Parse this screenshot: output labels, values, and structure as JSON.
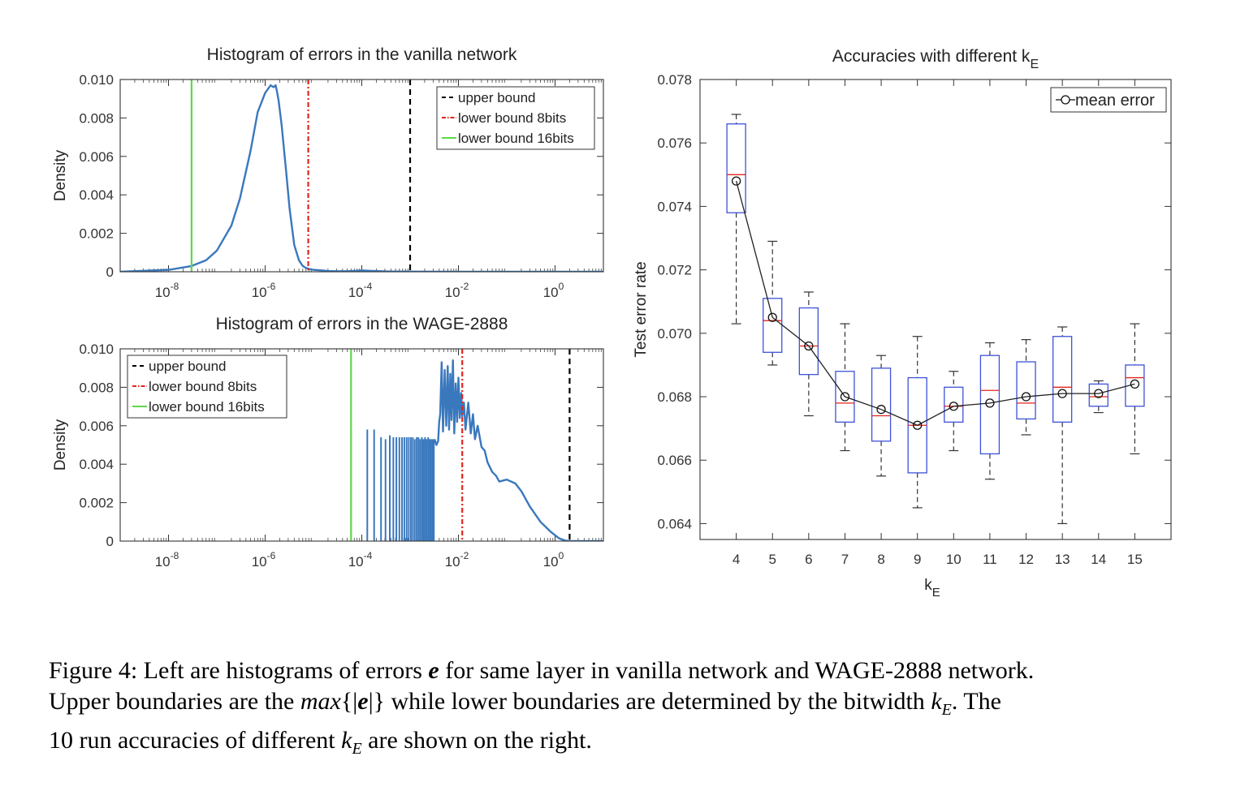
{
  "colors": {
    "histogram": "#3a78bd",
    "upper_bound": "#000000",
    "lower_bound_8bits": "#e0261c",
    "lower_bound_16bits": "#5fd84a",
    "box": "#3e52d8",
    "median": "#e0261c",
    "whisker": "#333333",
    "mean_line": "#222222"
  },
  "chart_data": [
    {
      "type": "line",
      "title": "Histogram of errors in the vanilla network",
      "xlabel": "",
      "ylabel": "Density",
      "x_scale": "log",
      "xlim": [
        1e-09,
        10.0
      ],
      "ylim": [
        0,
        0.01
      ],
      "x_ticks": [
        1e-08,
        1e-06,
        0.0001,
        0.01,
        1.0
      ],
      "x_tick_labels": [
        {
          "base": "10",
          "exp": "-8"
        },
        {
          "base": "10",
          "exp": "-6"
        },
        {
          "base": "10",
          "exp": "-4"
        },
        {
          "base": "10",
          "exp": "-2"
        },
        {
          "base": "10",
          "exp": "0"
        }
      ],
      "y_ticks": [
        0,
        0.002,
        0.004,
        0.006,
        0.008,
        0.01
      ],
      "y_tick_labels": [
        "0",
        "0.002",
        "0.004",
        "0.006",
        "0.008",
        "0.010"
      ],
      "legend": {
        "position": "top-right",
        "entries": [
          "upper bound",
          "lower bound 8bits",
          "lower bound 16bits"
        ]
      },
      "vlines": [
        {
          "name": "upper bound",
          "x": 0.001,
          "style": "dashed"
        },
        {
          "name": "lower bound 8bits",
          "x": 7.8e-06,
          "style": "dashdot"
        },
        {
          "name": "lower bound 16bits",
          "x": 3e-08,
          "style": "solid"
        }
      ],
      "series": [
        {
          "x": [
            1e-09,
            1e-08,
            3e-08,
            6e-08,
            1e-07,
            2e-07,
            3e-07,
            5e-07,
            7e-07,
            1e-06,
            1.3e-06,
            1.5e-06,
            1.65e-06,
            1.75e-06,
            1.9e-06,
            2.2e-06,
            2.7e-06,
            3.2e-06,
            4e-06,
            5e-06,
            6e-06,
            7e-06,
            8e-06,
            1e-05,
            1.5e-05,
            2e-05,
            3e-05,
            5e-05,
            8e-05,
            0.0001,
            0.00015,
            0.00025,
            0.0004,
            0.001,
            0.01,
            1,
            10
          ],
          "y": [
            0.0,
            0.0001,
            0.0003,
            0.0006,
            0.0011,
            0.0024,
            0.0038,
            0.0063,
            0.0083,
            0.0093,
            0.0097,
            0.0096,
            0.0097,
            0.0094,
            0.0089,
            0.0076,
            0.0053,
            0.0033,
            0.0014,
            0.0006,
            0.0003,
            0.0002,
            0.00015,
            0.0001,
            7e-05,
            4e-05,
            3e-05,
            3e-05,
            5e-05,
            7e-05,
            5e-05,
            3e-05,
            1e-05,
            1e-05,
            0.0,
            0.0,
            0.0
          ]
        }
      ]
    },
    {
      "type": "line",
      "title": "Histogram of errors in the WAGE-2888",
      "xlabel": "",
      "ylabel": "Density",
      "x_scale": "log",
      "xlim": [
        1e-09,
        10.0
      ],
      "ylim": [
        0,
        0.01
      ],
      "x_ticks": [
        1e-08,
        1e-06,
        0.0001,
        0.01,
        1.0
      ],
      "x_tick_labels": [
        {
          "base": "10",
          "exp": "-8"
        },
        {
          "base": "10",
          "exp": "-6"
        },
        {
          "base": "10",
          "exp": "-4"
        },
        {
          "base": "10",
          "exp": "-2"
        },
        {
          "base": "10",
          "exp": "0"
        }
      ],
      "y_ticks": [
        0,
        0.002,
        0.004,
        0.006,
        0.008,
        0.01
      ],
      "y_tick_labels": [
        "0",
        "0.002",
        "0.004",
        "0.006",
        "0.008",
        "0.010"
      ],
      "legend": {
        "position": "top-left",
        "entries": [
          "upper bound",
          "lower bound 8bits",
          "lower bound 16bits"
        ]
      },
      "vlines": [
        {
          "name": "upper bound",
          "x": 2,
          "style": "dashed"
        },
        {
          "name": "lower bound 8bits",
          "x": 0.012,
          "style": "dashdot"
        },
        {
          "name": "lower bound 16bits",
          "x": 6e-05,
          "style": "solid"
        }
      ],
      "spikes": {
        "x": [
          0.00013,
          0.00018,
          0.00025,
          0.00031,
          0.00038,
          0.00045,
          0.00052,
          0.0006,
          0.00068,
          0.00076,
          0.00085,
          0.00094,
          0.00104,
          0.00114,
          0.00125,
          0.00137,
          0.00149,
          0.00161,
          0.00175,
          0.00189,
          0.00204,
          0.0022,
          0.00237,
          0.00254,
          0.00272,
          0.00291,
          0.0031
        ],
        "y": [
          0.0058,
          0.0058,
          0.0054,
          0.0053,
          0.0055,
          0.0054,
          0.0054,
          0.0054,
          0.0054,
          0.0054,
          0.0054,
          0.0054,
          0.0054,
          0.0054,
          0.0053,
          0.0054,
          0.0054,
          0.0053,
          0.0054,
          0.0053,
          0.0054,
          0.0053,
          0.0054,
          0.0053,
          0.0053,
          0.0053,
          0.0053
        ]
      },
      "series": [
        {
          "x": [
            0.0032,
            0.0035,
            0.0038,
            0.004,
            0.0042,
            0.0045,
            0.0048,
            0.0052,
            0.0056,
            0.006,
            0.0064,
            0.0068,
            0.0072,
            0.0077,
            0.0082,
            0.0088,
            0.0094,
            0.01,
            0.0107,
            0.0114,
            0.012,
            0.013,
            0.014,
            0.016,
            0.018,
            0.02,
            0.022,
            0.025,
            0.03,
            0.035,
            0.04,
            0.05,
            0.06,
            0.07,
            0.1,
            0.15,
            0.2,
            0.3,
            0.5,
            0.8,
            1.2,
            1.6,
            2,
            3,
            10
          ],
          "y": [
            0.0053,
            0.005,
            0.0052,
            0.0062,
            0.0066,
            0.0093,
            0.0057,
            0.0089,
            0.006,
            0.0091,
            0.0058,
            0.0087,
            0.0063,
            0.0094,
            0.0056,
            0.0082,
            0.0062,
            0.0085,
            0.0064,
            0.0077,
            0.0065,
            0.0072,
            0.0058,
            0.0072,
            0.0056,
            0.0066,
            0.0053,
            0.006,
            0.0049,
            0.0047,
            0.0041,
            0.0036,
            0.0034,
            0.0031,
            0.0032,
            0.003,
            0.0026,
            0.0018,
            0.001,
            0.0005,
            0.00015,
            3e-05,
            0.0,
            0.0,
            0.0
          ]
        }
      ]
    },
    {
      "type": "box",
      "title": "Accuracies with different k",
      "title_subscript": "E",
      "xlabel": "k",
      "xlabel_subscript": "E",
      "ylabel": "Test error rate",
      "xlim": [
        3,
        16
      ],
      "ylim": [
        0.0635,
        0.078
      ],
      "categories": [
        4,
        5,
        6,
        7,
        8,
        9,
        10,
        11,
        12,
        13,
        14,
        15
      ],
      "y_ticks": [
        0.064,
        0.066,
        0.068,
        0.07,
        0.072,
        0.074,
        0.076,
        0.078
      ],
      "y_tick_labels": [
        "0.064",
        "0.066",
        "0.068",
        "0.070",
        "0.072",
        "0.074",
        "0.076",
        "0.078"
      ],
      "legend": {
        "position": "top-right",
        "entries": [
          "mean error"
        ]
      },
      "boxes": [
        {
          "k": 4,
          "whisker_low": 0.0703,
          "q1": 0.0738,
          "median": 0.075,
          "q3": 0.0766,
          "whisker_high": 0.0769
        },
        {
          "k": 5,
          "whisker_low": 0.069,
          "q1": 0.0694,
          "median": 0.0704,
          "q3": 0.0711,
          "whisker_high": 0.0729
        },
        {
          "k": 6,
          "whisker_low": 0.0674,
          "q1": 0.0687,
          "median": 0.0696,
          "q3": 0.0708,
          "whisker_high": 0.0713
        },
        {
          "k": 7,
          "whisker_low": 0.0663,
          "q1": 0.0672,
          "median": 0.0678,
          "q3": 0.0688,
          "whisker_high": 0.0703
        },
        {
          "k": 8,
          "whisker_low": 0.0655,
          "q1": 0.0666,
          "median": 0.0674,
          "q3": 0.0689,
          "whisker_high": 0.0693
        },
        {
          "k": 9,
          "whisker_low": 0.0645,
          "q1": 0.0656,
          "median": 0.0671,
          "q3": 0.0686,
          "whisker_high": 0.0699
        },
        {
          "k": 10,
          "whisker_low": 0.0663,
          "q1": 0.0672,
          "median": 0.0677,
          "q3": 0.0683,
          "whisker_high": 0.0688
        },
        {
          "k": 11,
          "whisker_low": 0.0654,
          "q1": 0.0662,
          "median": 0.0682,
          "q3": 0.0693,
          "whisker_high": 0.0697
        },
        {
          "k": 12,
          "whisker_low": 0.0668,
          "q1": 0.0673,
          "median": 0.0678,
          "q3": 0.0691,
          "whisker_high": 0.0698
        },
        {
          "k": 13,
          "whisker_low": 0.064,
          "q1": 0.0672,
          "median": 0.0683,
          "q3": 0.0699,
          "whisker_high": 0.0702
        },
        {
          "k": 14,
          "whisker_low": 0.0675,
          "q1": 0.0677,
          "median": 0.068,
          "q3": 0.0684,
          "whisker_high": 0.0685
        },
        {
          "k": 15,
          "whisker_low": 0.0662,
          "q1": 0.0677,
          "median": 0.0686,
          "q3": 0.069,
          "whisker_high": 0.0703
        }
      ],
      "series": [
        {
          "name": "mean error",
          "x": [
            4,
            5,
            6,
            7,
            8,
            9,
            10,
            11,
            12,
            13,
            14,
            15
          ],
          "values": [
            0.0748,
            0.0705,
            0.0696,
            0.068,
            0.0676,
            0.0671,
            0.0677,
            0.0678,
            0.068,
            0.0681,
            0.0681,
            0.0684
          ]
        }
      ]
    }
  ],
  "caption": {
    "label": "Figure 4:",
    "part1": " Left are histograms of errors ",
    "sym_e": "e",
    "part2": " for same layer in vanilla network and WAGE-2888 network.",
    "part3": "Upper boundaries are the ",
    "sym_max": "max",
    "part4": "{|",
    "part5": "|}",
    "part6": " while lower boundaries are determined by the bitwidth ",
    "sym_k": "k",
    "sym_sub": "E",
    "part7": ". The",
    "part8": "10 run accuracies of different ",
    "part9": " are shown on the right."
  }
}
